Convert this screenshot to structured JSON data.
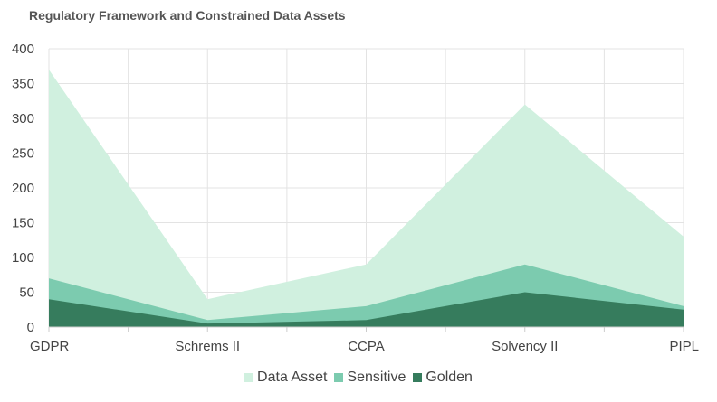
{
  "chart_data": {
    "type": "area",
    "title": "Regulatory Framework and Constrained Data Assets",
    "xlabel": "",
    "ylabel": "",
    "categories": [
      "GDPR",
      "Schrems II",
      "CCPA",
      "Solvency II",
      "PIPL"
    ],
    "ylim": [
      0,
      400
    ],
    "yticks": [
      0,
      50,
      100,
      150,
      200,
      250,
      300,
      350,
      400
    ],
    "grid": true,
    "legend_position": "bottom",
    "series": [
      {
        "name": "Data Asset",
        "values": [
          370,
          40,
          90,
          320,
          130
        ],
        "color": "#d0f0df"
      },
      {
        "name": "Sensitive",
        "values": [
          70,
          10,
          30,
          90,
          30
        ],
        "color": "#7ccbaf"
      },
      {
        "name": "Golden",
        "values": [
          40,
          5,
          10,
          50,
          25
        ],
        "color": "#367c5d"
      }
    ]
  }
}
